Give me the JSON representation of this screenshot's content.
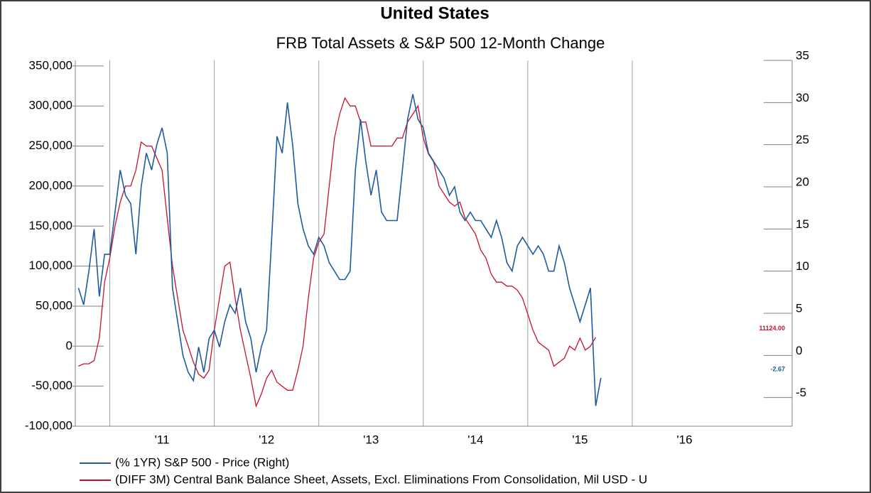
{
  "chart_data": {
    "type": "line",
    "title": "United States",
    "subtitle": "FRB Total Assets & S&P 500 12-Month Change",
    "x": [
      2010.7,
      2010.75,
      2010.8,
      2010.85,
      2010.9,
      2010.95,
      2011.0,
      2011.05,
      2011.1,
      2011.15,
      2011.2,
      2011.25,
      2011.3,
      2011.35,
      2011.4,
      2011.45,
      2011.5,
      2011.55,
      2011.6,
      2011.65,
      2011.7,
      2011.75,
      2011.8,
      2011.85,
      2011.9,
      2011.95,
      2012.0,
      2012.05,
      2012.1,
      2012.15,
      2012.2,
      2012.25,
      2012.3,
      2012.35,
      2012.4,
      2012.45,
      2012.5,
      2012.55,
      2012.6,
      2012.65,
      2012.7,
      2012.75,
      2012.8,
      2012.85,
      2012.9,
      2012.95,
      2013.0,
      2013.05,
      2013.1,
      2013.15,
      2013.2,
      2013.25,
      2013.3,
      2013.35,
      2013.4,
      2013.45,
      2013.5,
      2013.55,
      2013.6,
      2013.65,
      2013.7,
      2013.75,
      2013.8,
      2013.85,
      2013.9,
      2013.95,
      2014.0,
      2014.05,
      2014.1,
      2014.15,
      2014.2,
      2014.25,
      2014.3,
      2014.35,
      2014.4,
      2014.45,
      2014.5,
      2014.55,
      2014.6,
      2014.65,
      2014.7,
      2014.75,
      2014.8,
      2014.85,
      2014.9,
      2014.95,
      2015.0,
      2015.05,
      2015.1,
      2015.15,
      2015.2,
      2015.25,
      2015.3,
      2015.35,
      2015.4,
      2015.45,
      2015.5,
      2015.55,
      2015.6,
      2015.65,
      2015.7
    ],
    "series": [
      {
        "name": "(% 1YR) S&P 500 - Price (Right)",
        "color": "#1f5b9e",
        "axis": "y2",
        "values": [
          8,
          6,
          10,
          15,
          7,
          12,
          12,
          17,
          22,
          19,
          18,
          12,
          20,
          24,
          22,
          25,
          27,
          24,
          8,
          4,
          0,
          -2,
          -3,
          1,
          -2,
          2,
          3,
          1,
          4,
          6,
          5,
          8,
          4,
          2,
          -2,
          1,
          3,
          14,
          26,
          24,
          30,
          25,
          18,
          15,
          13,
          12,
          14,
          13,
          11,
          10,
          9,
          9,
          10,
          22,
          28,
          23,
          19,
          22,
          17,
          16,
          16,
          16,
          22,
          28,
          31,
          28,
          27,
          24,
          23,
          22,
          21,
          19,
          20,
          17,
          16,
          17,
          16,
          16,
          15,
          14,
          16,
          14,
          11,
          10,
          13,
          14,
          13,
          12,
          13,
          12,
          10,
          10,
          13,
          11,
          8,
          6,
          4,
          6,
          8,
          -6,
          -2.67
        ],
        "end_label": "-2.67"
      },
      {
        "name": "(DIFF 3M) Central Bank Balance Sheet, Assets, Excl. Eliminations From Consolidation, Mil USD - U",
        "color": "#c8102e",
        "values": [
          -25000,
          -22000,
          -22000,
          -18000,
          10000,
          80000,
          110000,
          150000,
          180000,
          200000,
          200000,
          220000,
          255000,
          250000,
          250000,
          235000,
          220000,
          160000,
          100000,
          60000,
          20000,
          0,
          -20000,
          -35000,
          -40000,
          -30000,
          20000,
          60000,
          100000,
          105000,
          60000,
          20000,
          -10000,
          -40000,
          -75000,
          -60000,
          -40000,
          -30000,
          -45000,
          -50000,
          -55000,
          -55000,
          -30000,
          0,
          60000,
          110000,
          130000,
          140000,
          200000,
          260000,
          290000,
          310000,
          300000,
          300000,
          280000,
          280000,
          250000,
          250000,
          250000,
          250000,
          250000,
          260000,
          260000,
          280000,
          290000,
          300000,
          260000,
          240000,
          230000,
          200000,
          190000,
          180000,
          175000,
          180000,
          160000,
          150000,
          140000,
          120000,
          110000,
          90000,
          80000,
          80000,
          75000,
          75000,
          70000,
          60000,
          40000,
          20000,
          5000,
          0,
          -5000,
          -25000,
          -20000,
          -15000,
          0,
          -5000,
          10000,
          -5000,
          0,
          11124,
          null
        ],
        "end_label": "11124.00"
      }
    ],
    "xlim": [
      2010.67,
      2017.53
    ],
    "xticks": [
      {
        "value": 2011,
        "label": "'11"
      },
      {
        "value": 2012,
        "label": "'12"
      },
      {
        "value": 2013,
        "label": "'13"
      },
      {
        "value": 2014,
        "label": "'14"
      },
      {
        "value": 2015,
        "label": "'15"
      },
      {
        "value": 2016,
        "label": "'16"
      }
    ],
    "ylim": [
      -100000,
      357000
    ],
    "yticks": [
      {
        "value": -100000,
        "label": "-100,000"
      },
      {
        "value": -50000,
        "label": "-50,000"
      },
      0,
      {
        "value": 50000,
        "label": "50,000"
      },
      {
        "value": 100000,
        "label": "100,000"
      },
      {
        "value": 150000,
        "label": "150,000"
      },
      {
        "value": 200000,
        "label": "200,000"
      },
      {
        "value": 250000,
        "label": "250,000"
      },
      {
        "value": 300000,
        "label": "300,000"
      },
      {
        "value": 350000,
        "label": "350,000"
      }
    ],
    "y2lim": [
      -8.4,
      35
    ],
    "y2ticks": [
      -5,
      0,
      5,
      10,
      15,
      20,
      25,
      30,
      35
    ]
  }
}
